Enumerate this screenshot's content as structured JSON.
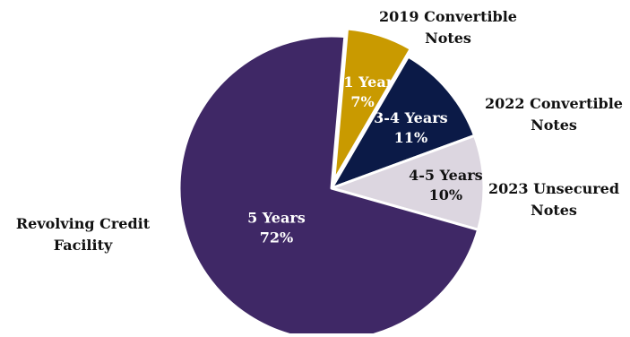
{
  "chart_data": {
    "type": "pie",
    "slices": [
      {
        "name_line1": "2019 Convertible",
        "name_line2": "Notes",
        "term": "<1 Year",
        "value": 7,
        "value_label": "7%",
        "color": "#C99A00",
        "text_color": "#ffffff"
      },
      {
        "name_line1": "2022 Convertible",
        "name_line2": "Notes",
        "term": "3-4 Years",
        "value": 11,
        "value_label": "11%",
        "color": "#0B1A47",
        "text_color": "#ffffff"
      },
      {
        "name_line1": "2023 Unsecured",
        "name_line2": "Notes",
        "term": "4-5 Years",
        "value": 10,
        "value_label": "10%",
        "color": "#DCD6E0",
        "text_color": "#111111"
      },
      {
        "name_line1": "Revolving Credit",
        "name_line2": "Facility",
        "term": "5 Years",
        "value": 72,
        "value_label": "72%",
        "color": "#3F2866",
        "text_color": "#ffffff"
      }
    ]
  }
}
